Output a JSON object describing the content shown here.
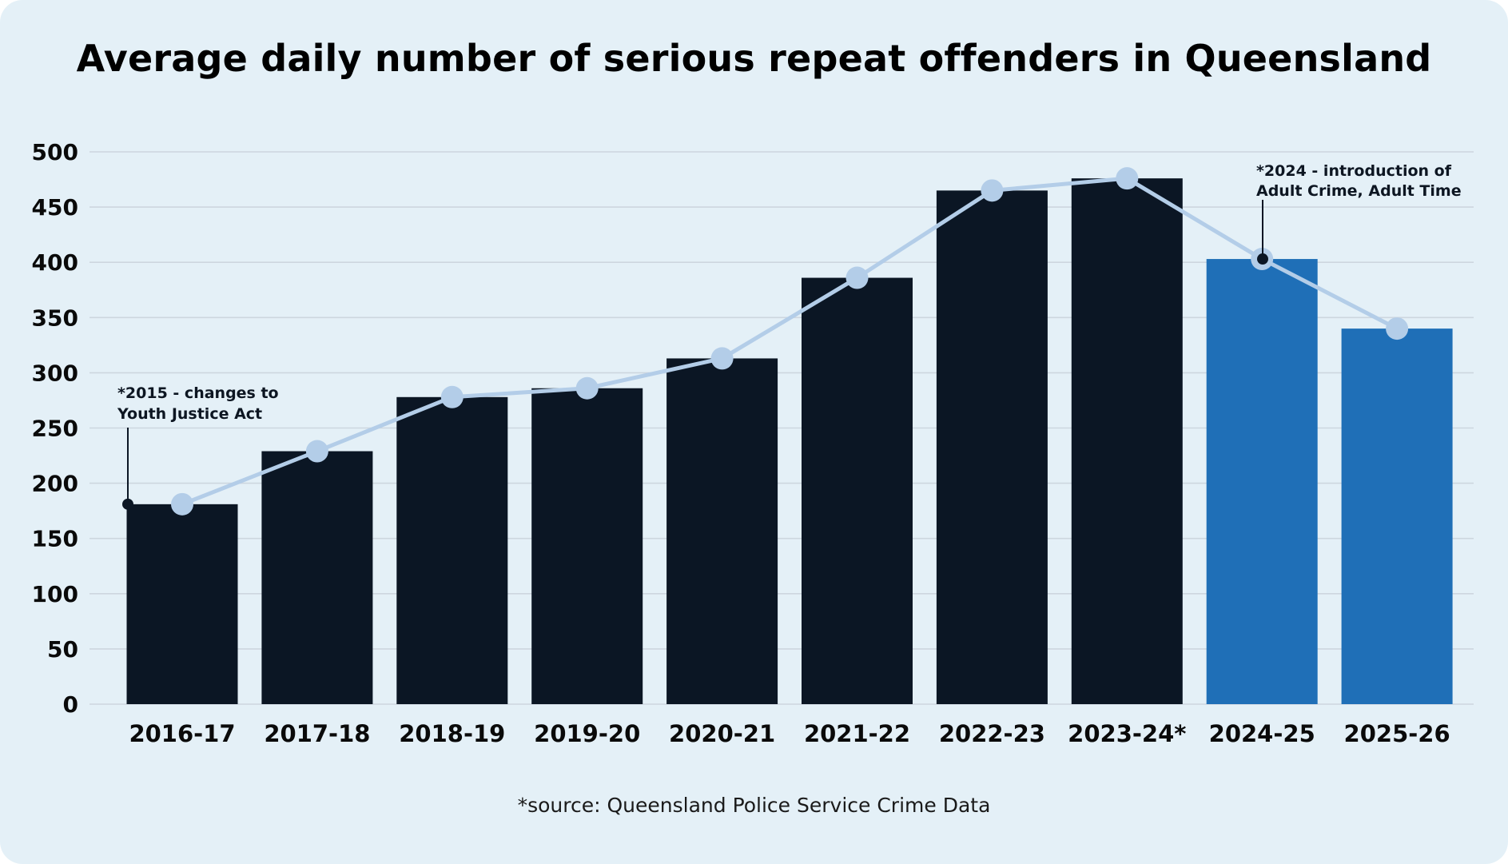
{
  "chart_data": {
    "type": "bar",
    "title": "Average daily number of serious repeat offenders in Queensland",
    "categories": [
      "2016-17",
      "2017-18",
      "2018-19",
      "2019-20",
      "2020-21",
      "2021-22",
      "2022-23",
      "2023-24*",
      "2024-25",
      "2025-26"
    ],
    "values": [
      181,
      229,
      278,
      286,
      313,
      386,
      465,
      476,
      403,
      340
    ],
    "line_values": [
      181,
      229,
      278,
      286,
      313,
      386,
      465,
      476,
      403,
      340
    ],
    "ylim": [
      0,
      500
    ],
    "yticks": [
      0,
      50,
      100,
      150,
      200,
      250,
      300,
      350,
      400,
      450,
      500
    ],
    "grid": true,
    "xlabel": "",
    "ylabel": "",
    "colors": {
      "background": "#e4f0f7",
      "bar_dark": "#0b1624",
      "bar_highlight": "#1f6fb7",
      "line": "#b3cde8",
      "gridline": "#cdd6df",
      "annotation_marker": "#0b1624"
    },
    "highlight_categories": [
      "2024-25",
      "2025-26"
    ],
    "annotations": [
      {
        "lines": [
          "*2015 - changes to",
          "Youth Justice Act"
        ],
        "category": "2016-17",
        "value": 181
      },
      {
        "lines": [
          "*2024 - introduction of",
          "Adult Crime, Adult Time"
        ],
        "category": "2024-25",
        "value": 403
      }
    ]
  },
  "footer": {
    "source": "*source: Queensland Police Service Crime Data"
  }
}
